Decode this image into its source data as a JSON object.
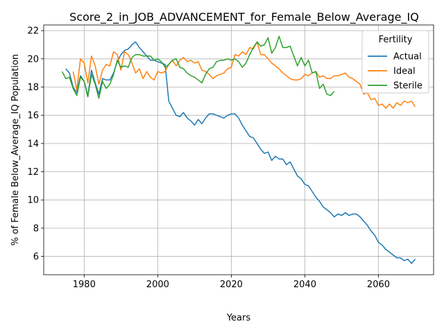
{
  "chart_data": {
    "type": "line",
    "title": "Score_2_in_JOB_ADVANCEMENT_for_Female_Below_Average_IQ",
    "xlabel": "Years",
    "ylabel": "% of Female Below_Average_IQ Population",
    "xlim": [
      1969,
      2075
    ],
    "ylim": [
      4.7,
      22.4
    ],
    "xticks": [
      1980,
      2000,
      2020,
      2040,
      2060
    ],
    "yticks": [
      6,
      8,
      10,
      12,
      14,
      16,
      18,
      20,
      22
    ],
    "grid": true,
    "legend": {
      "title": "Fertility",
      "placement": "top-right"
    },
    "series": [
      {
        "name": "Actual",
        "color": "#1f77b4",
        "x": [
          1975,
          1976,
          1977,
          1978,
          1979,
          1980,
          1981,
          1982,
          1983,
          1984,
          1985,
          1986,
          1987,
          1988,
          1989,
          1990,
          1991,
          1992,
          1993,
          1994,
          1995,
          1996,
          1997,
          1998,
          1999,
          2000,
          2001,
          2002,
          2003,
          2004,
          2005,
          2006,
          2007,
          2008,
          2009,
          2010,
          2011,
          2012,
          2013,
          2014,
          2015,
          2016,
          2017,
          2018,
          2019,
          2020,
          2021,
          2022,
          2023,
          2024,
          2025,
          2026,
          2027,
          2028,
          2029,
          2030,
          2031,
          2032,
          2033,
          2034,
          2035,
          2036,
          2037,
          2038,
          2039,
          2040,
          2041,
          2042,
          2043,
          2044,
          2045,
          2046,
          2047,
          2048,
          2049,
          2050,
          2051,
          2052,
          2053,
          2054,
          2055,
          2056,
          2057,
          2058,
          2059,
          2060,
          2061,
          2062,
          2063,
          2064,
          2065,
          2066,
          2067,
          2068,
          2069,
          2070
        ],
        "y": [
          19.3,
          19.0,
          18.0,
          17.6,
          18.8,
          18.4,
          17.4,
          19.2,
          18.3,
          17.5,
          18.6,
          18.5,
          18.5,
          19.0,
          19.8,
          20.3,
          20.6,
          20.7,
          21.0,
          21.2,
          20.8,
          20.5,
          20.2,
          19.9,
          19.9,
          19.8,
          19.7,
          19.6,
          17.0,
          16.5,
          16.0,
          15.9,
          16.2,
          15.8,
          15.6,
          15.3,
          15.7,
          15.4,
          15.8,
          16.1,
          16.1,
          16.0,
          15.9,
          15.8,
          16.0,
          16.1,
          16.1,
          15.8,
          15.3,
          14.9,
          14.5,
          14.4,
          14.0,
          13.6,
          13.3,
          13.4,
          12.8,
          13.1,
          12.9,
          12.9,
          12.5,
          12.7,
          12.2,
          11.7,
          11.5,
          11.1,
          11.0,
          10.6,
          10.2,
          9.9,
          9.5,
          9.3,
          9.1,
          8.8,
          9.0,
          8.9,
          9.1,
          8.9,
          9.0,
          9.0,
          8.8,
          8.5,
          8.2,
          7.8,
          7.5,
          7.0,
          6.8,
          6.5,
          6.3,
          6.1,
          5.9,
          5.9,
          5.7,
          5.8,
          5.5,
          5.8
        ]
      },
      {
        "name": "Ideal",
        "color": "#ff7f0e",
        "x": [
          1977,
          1978,
          1979,
          1980,
          1981,
          1982,
          1983,
          1984,
          1985,
          1986,
          1987,
          1988,
          1989,
          1990,
          1991,
          1992,
          1993,
          1994,
          1995,
          1996,
          1997,
          1998,
          1999,
          2000,
          2001,
          2002,
          2003,
          2004,
          2005,
          2006,
          2007,
          2008,
          2009,
          2010,
          2011,
          2012,
          2013,
          2014,
          2015,
          2016,
          2017,
          2018,
          2019,
          2020,
          2021,
          2022,
          2023,
          2024,
          2025,
          2026,
          2027,
          2028,
          2029,
          2030,
          2031,
          2032,
          2033,
          2034,
          2035,
          2036,
          2037,
          2038,
          2039,
          2040,
          2041,
          2042,
          2043,
          2044,
          2045,
          2046,
          2047,
          2048,
          2049,
          2050,
          2051,
          2052,
          2053,
          2054,
          2055,
          2056,
          2057,
          2058,
          2059,
          2060,
          2061,
          2062,
          2063,
          2064,
          2065,
          2066,
          2067,
          2068,
          2069,
          2070
        ],
        "y": [
          19.1,
          17.8,
          20.0,
          19.7,
          18.3,
          20.2,
          19.5,
          18.2,
          19.2,
          19.6,
          19.5,
          20.5,
          20.3,
          19.2,
          20.5,
          20.3,
          19.7,
          19.0,
          19.3,
          18.6,
          19.1,
          18.7,
          18.5,
          19.1,
          19.0,
          19.1,
          19.6,
          19.9,
          19.5,
          19.9,
          20.1,
          19.8,
          19.9,
          19.7,
          19.8,
          19.2,
          19.1,
          18.9,
          18.6,
          18.8,
          18.9,
          19.0,
          19.3,
          19.4,
          20.3,
          20.2,
          20.5,
          20.3,
          20.8,
          20.7,
          21.2,
          20.3,
          20.3,
          20.0,
          19.7,
          19.5,
          19.3,
          19.0,
          18.8,
          18.6,
          18.5,
          18.5,
          18.6,
          18.9,
          18.8,
          19.0,
          19.1,
          18.7,
          18.8,
          18.6,
          18.6,
          18.8,
          18.8,
          18.9,
          19.0,
          18.7,
          18.6,
          18.4,
          18.2,
          17.5,
          17.6,
          17.1,
          17.2,
          16.7,
          16.8,
          16.5,
          16.8,
          16.5,
          16.9,
          16.7,
          17.0,
          16.9,
          17.0,
          16.6
        ]
      },
      {
        "name": "Sterile",
        "color": "#2ca02c",
        "x": [
          1974,
          1975,
          1976,
          1977,
          1978,
          1979,
          1980,
          1981,
          1982,
          1983,
          1984,
          1985,
          1986,
          1987,
          1988,
          1989,
          1990,
          1991,
          1992,
          1993,
          1994,
          1995,
          1996,
          1997,
          1998,
          1999,
          2000,
          2001,
          2002,
          2003,
          2004,
          2005,
          2006,
          2007,
          2008,
          2009,
          2010,
          2011,
          2012,
          2013,
          2014,
          2015,
          2016,
          2017,
          2018,
          2019,
          2020,
          2021,
          2022,
          2023,
          2024,
          2025,
          2026,
          2027,
          2028,
          2029,
          2030,
          2031,
          2032,
          2033,
          2034,
          2035,
          2036,
          2037,
          2038,
          2039,
          2040,
          2041,
          2042,
          2043,
          2044,
          2045,
          2046,
          2047,
          2048
        ],
        "y": [
          19.1,
          18.6,
          18.7,
          17.9,
          17.4,
          18.7,
          18.4,
          17.3,
          18.9,
          18.2,
          17.2,
          18.4,
          17.9,
          18.2,
          18.9,
          19.9,
          19.4,
          19.5,
          19.4,
          20.1,
          20.3,
          20.3,
          20.2,
          20.2,
          20.2,
          19.9,
          20.0,
          19.8,
          19.4,
          19.6,
          19.9,
          20.0,
          19.4,
          19.3,
          19.0,
          18.8,
          18.7,
          18.5,
          18.3,
          18.9,
          19.3,
          19.4,
          19.8,
          19.9,
          19.9,
          20.0,
          19.9,
          20.0,
          19.8,
          19.4,
          19.7,
          20.3,
          20.8,
          21.2,
          20.9,
          21.0,
          21.5,
          20.4,
          20.8,
          21.6,
          20.8,
          20.8,
          20.9,
          20.2,
          19.5,
          20.1,
          19.5,
          19.9,
          19.0,
          19.1,
          17.9,
          18.2,
          17.5,
          17.4,
          17.7
        ]
      }
    ]
  }
}
